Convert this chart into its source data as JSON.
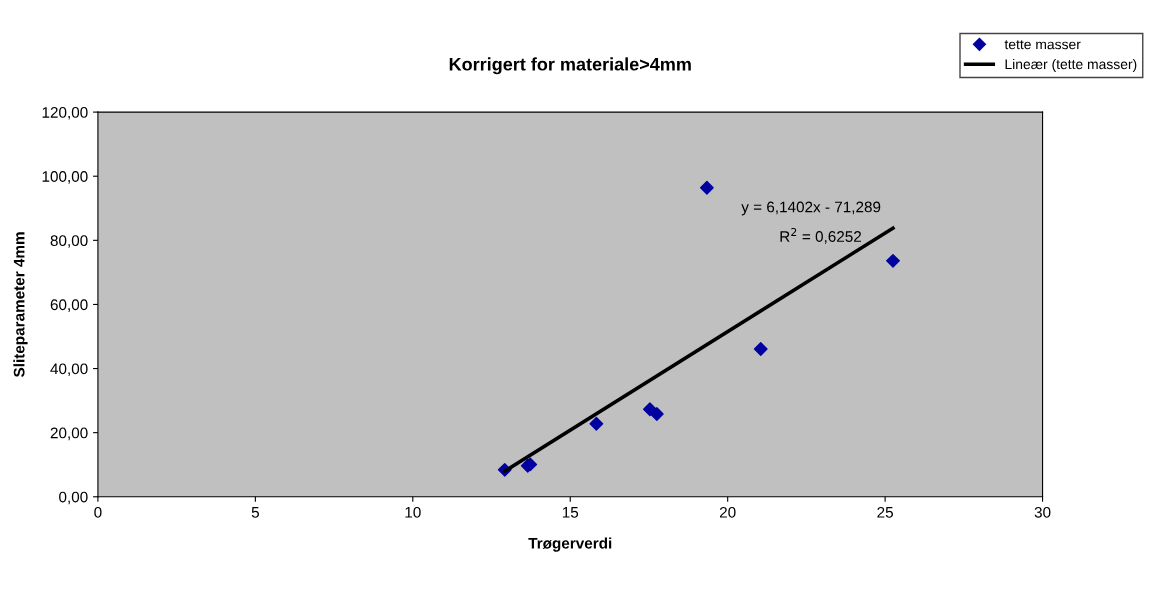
{
  "chart_data": {
    "type": "scatter",
    "title": "Korrigert for materiale>4mm",
    "xlabel": "Trøgerverdi",
    "ylabel": "Sliteparameter 4mm",
    "x": [
      12.92,
      13.65,
      13.73,
      15.83,
      17.53,
      17.75,
      19.34,
      21.05,
      25.25
    ],
    "series": [
      {
        "name": "tette masser",
        "color": "#0000a0",
        "marker": "diamond",
        "values": [
          8.4,
          9.7,
          10.1,
          22.8,
          27.3,
          25.8,
          96.4,
          46.1,
          73.6
        ]
      },
      {
        "name": "Lineær (tette masser)",
        "type": "line",
        "color": "#000000",
        "marker": "none",
        "line_style": "solid",
        "x": [
          12.92,
          25.25
        ],
        "values": [
          8.0,
          83.8
        ]
      }
    ],
    "annotations": [
      "y = 6,1402x - 71,289",
      "R$^{2}$ = 0,6252"
    ],
    "xlim": [
      0,
      30
    ],
    "xticks": [
      0,
      5,
      10,
      15,
      20,
      25,
      30
    ],
    "ylim": [
      0,
      120
    ],
    "yticks": [
      {
        "value": 0,
        "label": "0,00"
      },
      {
        "value": 20,
        "label": "20,00"
      },
      {
        "value": 40,
        "label": "40,00"
      },
      {
        "value": 60,
        "label": "60,00"
      },
      {
        "value": 80,
        "label": "80,00"
      },
      {
        "value": 100,
        "label": "100,00"
      },
      {
        "value": 120,
        "label": "120,00"
      }
    ],
    "grid": false,
    "legend": "top right"
  }
}
